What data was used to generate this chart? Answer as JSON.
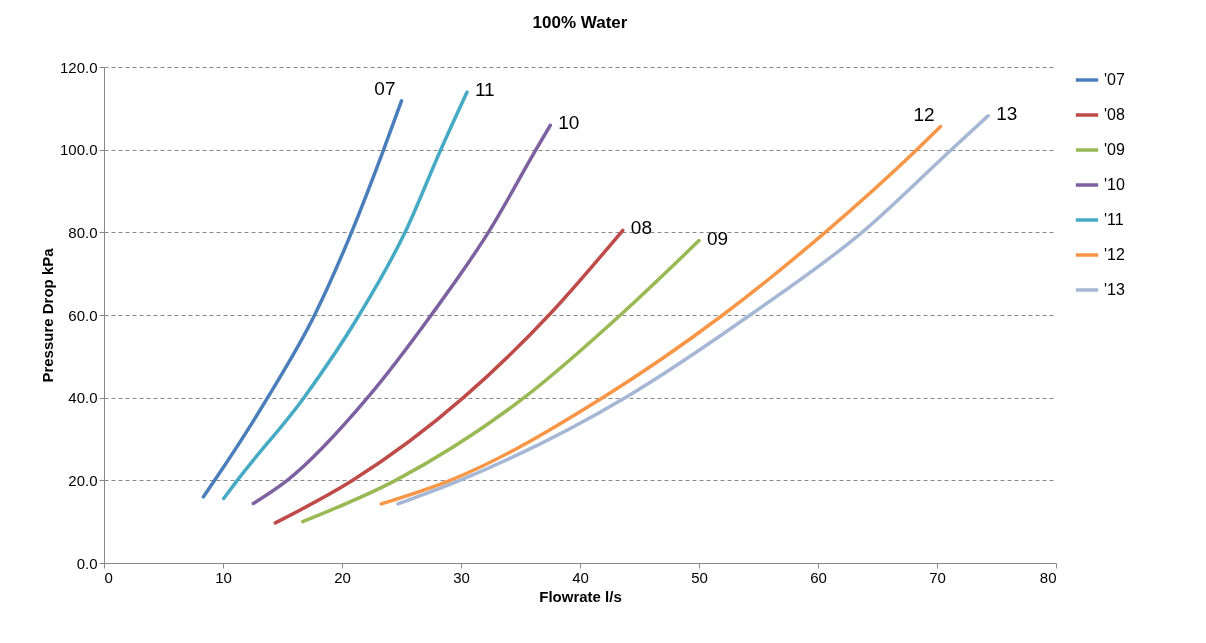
{
  "chart_data": {
    "type": "line",
    "title": "100% Water",
    "xlabel": "Flowrate l/s",
    "ylabel": "Pressure Drop kPa",
    "xlim": [
      0,
      80
    ],
    "xticks": [
      0,
      10,
      20,
      30,
      40,
      50,
      60,
      70,
      80
    ],
    "ylim": [
      0,
      120
    ],
    "yticks": [
      {
        "value": 0,
        "label": "0.0"
      },
      {
        "value": 20,
        "label": "20.0"
      },
      {
        "value": 40,
        "label": "40.0"
      },
      {
        "value": 60,
        "label": "60.0"
      },
      {
        "value": 80,
        "label": "80.0"
      },
      {
        "value": 100,
        "label": "100.0"
      },
      {
        "value": 120,
        "label": "120.0"
      }
    ],
    "grid": "y",
    "legend": "right",
    "line_style": "solid",
    "series": [
      {
        "name": "'07",
        "color": "#4a7ebb",
        "x": [
          8.35,
          9.3,
          13.75,
          17.7,
          20.8,
          23.5,
          25.0
        ],
        "values": [
          16.0,
          20,
          40,
          60,
          80,
          100,
          111.8
        ]
      },
      {
        "name": "'08",
        "color": "#be4b48",
        "x": [
          14.4,
          20.9,
          30.2,
          37.4,
          43.6
        ],
        "values": [
          9.7,
          20,
          40,
          60,
          80.5
        ]
      },
      {
        "name": "'09",
        "color": "#98b954",
        "x": [
          16.7,
          24.5,
          35.3,
          43.4,
          50.0
        ],
        "values": [
          10.0,
          20,
          40,
          60,
          78.0
        ]
      },
      {
        "name": "'10",
        "color": "#7d60a0",
        "x": [
          12.55,
          15.4,
          22.15,
          27.5,
          32.3,
          36.3,
          37.5
        ],
        "values": [
          14.4,
          20,
          40,
          60,
          80,
          100,
          105.9
        ]
      },
      {
        "name": "'11",
        "color": "#46aac5",
        "x": [
          10.06,
          11.2,
          16.8,
          21.45,
          25.3,
          28.3,
          30.5
        ],
        "values": [
          15.6,
          20,
          40,
          60,
          80,
          100,
          113.9
        ]
      },
      {
        "name": "'12",
        "color": "#f79646",
        "x": [
          23.3,
          29.1,
          41.9,
          52.0,
          60.6,
          68.3,
          70.3
        ],
        "values": [
          14.3,
          20,
          40,
          60,
          80,
          100,
          105.6
        ]
      },
      {
        "name": "'13",
        "color": "#a5b7d5",
        "x": [
          24.7,
          29.9,
          43.8,
          54.3,
          63.7,
          71.2,
          74.3
        ],
        "values": [
          14.3,
          20,
          40,
          60,
          80,
          100,
          108.2
        ]
      }
    ],
    "annotations": [
      {
        "text": "07",
        "x": 25.0,
        "y": 111.8
      },
      {
        "text": "11",
        "x": 30.5,
        "y": 113.9
      },
      {
        "text": "10",
        "x": 37.5,
        "y": 105.9
      },
      {
        "text": "08",
        "x": 43.6,
        "y": 80.5
      },
      {
        "text": "09",
        "x": 50.0,
        "y": 78.0
      },
      {
        "text": "12",
        "x": 70.3,
        "y": 105.6
      },
      {
        "text": "13",
        "x": 74.3,
        "y": 108.2
      }
    ]
  }
}
